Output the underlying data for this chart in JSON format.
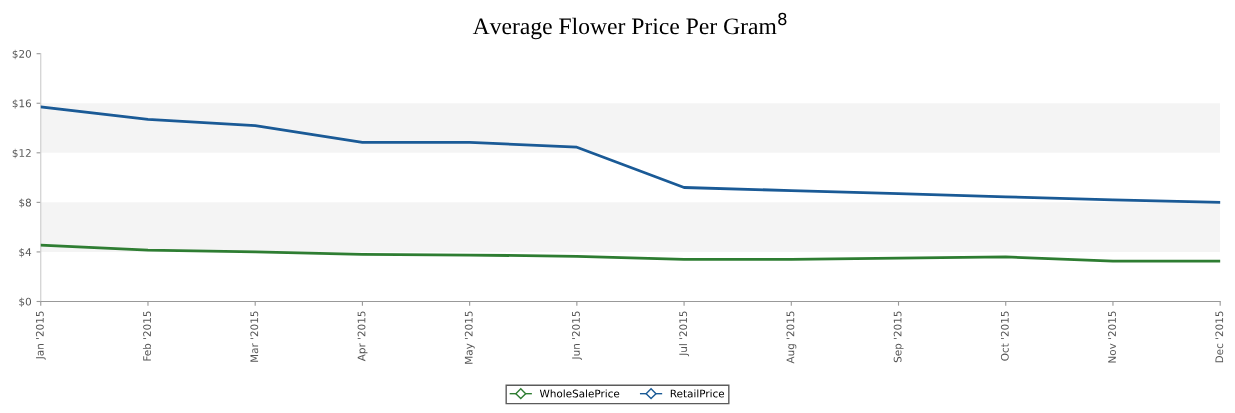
{
  "chart_data": {
    "type": "line",
    "title": "Average Flower Price Per Gram$^{8}$",
    "categories": [
      "Jan '2015",
      "Feb '2015",
      "Mar '2015",
      "Apr '2015",
      "May '2015",
      "Jun '2015",
      "Jul '2015",
      "Aug '2015",
      "Sep '2015",
      "Oct '2015",
      "Nov '2015",
      "Dec '2015"
    ],
    "series": [
      {
        "name": "WholeSalePrice",
        "color": "#2e7d32",
        "values": [
          4.55,
          4.15,
          4.0,
          3.8,
          3.75,
          3.65,
          3.4,
          3.4,
          3.5,
          3.6,
          3.25,
          3.25
        ]
      },
      {
        "name": "RetailPrice",
        "color": "#1a5a96",
        "values": [
          15.7,
          14.7,
          14.2,
          12.85,
          12.85,
          12.45,
          9.2,
          8.95,
          8.7,
          8.45,
          8.2,
          8.0
        ]
      }
    ],
    "ylim": [
      0,
      20
    ],
    "yticks": [
      {
        "value": 0,
        "label": "$0"
      },
      {
        "value": 4,
        "label": "$4"
      },
      {
        "value": 8,
        "label": "$8"
      },
      {
        "value": 12,
        "label": "$12"
      },
      {
        "value": 16,
        "label": "$16"
      },
      {
        "value": 20,
        "label": "$20"
      }
    ],
    "bands": [
      {
        "axis": "y",
        "from": 4,
        "to": 8,
        "color": "#f4f4f4"
      },
      {
        "axis": "y",
        "from": 12,
        "to": 16,
        "color": "#f4f4f4"
      }
    ],
    "grid": false,
    "legend": "bottom",
    "marker": "none",
    "line_style": "solid"
  }
}
